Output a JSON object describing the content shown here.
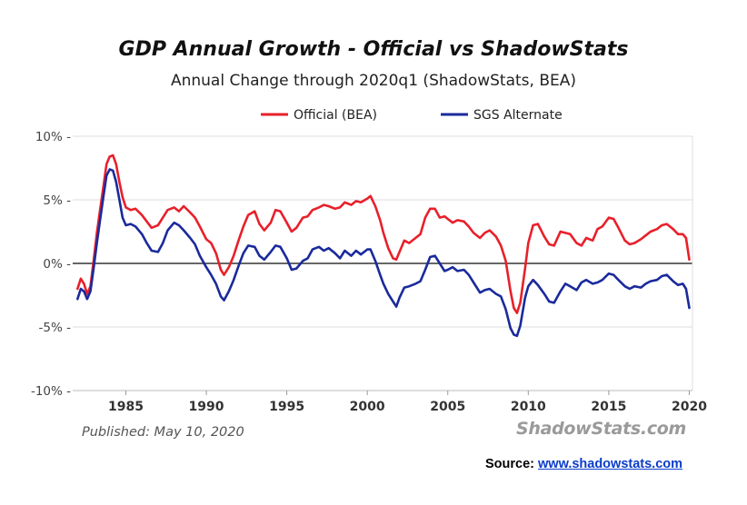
{
  "chart_data": {
    "type": "line",
    "title": "GDP Annual Growth - Official vs ShadowStats",
    "subtitle": "Annual Change through 2020q1  (ShadowStats, BEA)",
    "xlabel": "",
    "ylabel": "",
    "xlim": [
      1981.7,
      2020.2
    ],
    "ylim": [
      -10,
      10
    ],
    "y_ticks": [
      10,
      5,
      0,
      -5,
      -10
    ],
    "y_tick_labels": [
      "10% -",
      "5% -",
      "0% -",
      "-5% -",
      "-10% -"
    ],
    "x_ticks": [
      1985,
      1990,
      1995,
      2000,
      2005,
      2010,
      2015,
      2020
    ],
    "x_tick_labels": [
      "1985",
      "1990",
      "1995",
      "2000",
      "2005",
      "2010",
      "2015",
      "2020"
    ],
    "grid": true,
    "legend": "top-center",
    "series": [
      {
        "name": "Official (BEA)",
        "color": "#e8202a",
        "points": [
          [
            1982.0,
            -2.0
          ],
          [
            1982.2,
            -1.2
          ],
          [
            1982.4,
            -1.6
          ],
          [
            1982.6,
            -2.4
          ],
          [
            1982.8,
            -1.8
          ],
          [
            1983.0,
            0.2
          ],
          [
            1983.2,
            2.4
          ],
          [
            1983.4,
            4.2
          ],
          [
            1983.6,
            6.0
          ],
          [
            1983.8,
            7.8
          ],
          [
            1984.0,
            8.4
          ],
          [
            1984.2,
            8.5
          ],
          [
            1984.4,
            7.8
          ],
          [
            1984.6,
            6.4
          ],
          [
            1984.8,
            5.2
          ],
          [
            1985.0,
            4.4
          ],
          [
            1985.3,
            4.2
          ],
          [
            1985.6,
            4.3
          ],
          [
            1986.0,
            3.8
          ],
          [
            1986.3,
            3.3
          ],
          [
            1986.6,
            2.8
          ],
          [
            1987.0,
            3.0
          ],
          [
            1987.3,
            3.6
          ],
          [
            1987.6,
            4.2
          ],
          [
            1988.0,
            4.4
          ],
          [
            1988.3,
            4.1
          ],
          [
            1988.6,
            4.5
          ],
          [
            1989.0,
            4.0
          ],
          [
            1989.3,
            3.6
          ],
          [
            1989.6,
            2.9
          ],
          [
            1990.0,
            1.9
          ],
          [
            1990.3,
            1.6
          ],
          [
            1990.6,
            0.8
          ],
          [
            1990.9,
            -0.5
          ],
          [
            1991.1,
            -0.9
          ],
          [
            1991.4,
            -0.3
          ],
          [
            1991.7,
            0.6
          ],
          [
            1992.0,
            1.8
          ],
          [
            1992.3,
            2.9
          ],
          [
            1992.6,
            3.8
          ],
          [
            1993.0,
            4.1
          ],
          [
            1993.3,
            3.1
          ],
          [
            1993.6,
            2.6
          ],
          [
            1994.0,
            3.2
          ],
          [
            1994.3,
            4.2
          ],
          [
            1994.6,
            4.1
          ],
          [
            1995.0,
            3.2
          ],
          [
            1995.3,
            2.5
          ],
          [
            1995.6,
            2.8
          ],
          [
            1996.0,
            3.6
          ],
          [
            1996.3,
            3.7
          ],
          [
            1996.6,
            4.2
          ],
          [
            1997.0,
            4.4
          ],
          [
            1997.3,
            4.6
          ],
          [
            1997.6,
            4.5
          ],
          [
            1998.0,
            4.3
          ],
          [
            1998.3,
            4.4
          ],
          [
            1998.6,
            4.8
          ],
          [
            1999.0,
            4.6
          ],
          [
            1999.3,
            4.9
          ],
          [
            1999.6,
            4.8
          ],
          [
            2000.0,
            5.1
          ],
          [
            2000.2,
            5.3
          ],
          [
            2000.5,
            4.5
          ],
          [
            2000.8,
            3.4
          ],
          [
            2001.0,
            2.4
          ],
          [
            2001.3,
            1.2
          ],
          [
            2001.6,
            0.4
          ],
          [
            2001.8,
            0.3
          ],
          [
            2002.0,
            0.9
          ],
          [
            2002.3,
            1.8
          ],
          [
            2002.6,
            1.6
          ],
          [
            2003.0,
            2.0
          ],
          [
            2003.3,
            2.3
          ],
          [
            2003.6,
            3.6
          ],
          [
            2003.9,
            4.3
          ],
          [
            2004.2,
            4.3
          ],
          [
            2004.5,
            3.6
          ],
          [
            2004.8,
            3.7
          ],
          [
            2005.0,
            3.5
          ],
          [
            2005.3,
            3.2
          ],
          [
            2005.6,
            3.4
          ],
          [
            2006.0,
            3.3
          ],
          [
            2006.3,
            2.9
          ],
          [
            2006.6,
            2.4
          ],
          [
            2007.0,
            2.0
          ],
          [
            2007.3,
            2.4
          ],
          [
            2007.6,
            2.6
          ],
          [
            2008.0,
            2.1
          ],
          [
            2008.3,
            1.4
          ],
          [
            2008.6,
            0.2
          ],
          [
            2008.9,
            -2.2
          ],
          [
            2009.1,
            -3.5
          ],
          [
            2009.3,
            -3.9
          ],
          [
            2009.5,
            -3.1
          ],
          [
            2009.8,
            -0.4
          ],
          [
            2010.0,
            1.6
          ],
          [
            2010.3,
            3.0
          ],
          [
            2010.6,
            3.1
          ],
          [
            2011.0,
            2.1
          ],
          [
            2011.3,
            1.5
          ],
          [
            2011.6,
            1.4
          ],
          [
            2012.0,
            2.5
          ],
          [
            2012.3,
            2.4
          ],
          [
            2012.6,
            2.3
          ],
          [
            2013.0,
            1.6
          ],
          [
            2013.3,
            1.4
          ],
          [
            2013.6,
            2.0
          ],
          [
            2014.0,
            1.8
          ],
          [
            2014.3,
            2.7
          ],
          [
            2014.6,
            2.9
          ],
          [
            2015.0,
            3.6
          ],
          [
            2015.3,
            3.5
          ],
          [
            2015.6,
            2.8
          ],
          [
            2016.0,
            1.8
          ],
          [
            2016.3,
            1.5
          ],
          [
            2016.6,
            1.6
          ],
          [
            2017.0,
            1.9
          ],
          [
            2017.3,
            2.2
          ],
          [
            2017.6,
            2.5
          ],
          [
            2018.0,
            2.7
          ],
          [
            2018.3,
            3.0
          ],
          [
            2018.6,
            3.1
          ],
          [
            2019.0,
            2.7
          ],
          [
            2019.3,
            2.3
          ],
          [
            2019.6,
            2.3
          ],
          [
            2019.8,
            2.0
          ],
          [
            2020.0,
            0.3
          ]
        ]
      },
      {
        "name": "SGS Alternate",
        "color": "#1a2a9c",
        "points": [
          [
            1982.0,
            -2.8
          ],
          [
            1982.2,
            -2.0
          ],
          [
            1982.4,
            -2.2
          ],
          [
            1982.6,
            -2.8
          ],
          [
            1982.8,
            -2.2
          ],
          [
            1983.0,
            -0.4
          ],
          [
            1983.2,
            1.6
          ],
          [
            1983.4,
            3.4
          ],
          [
            1983.6,
            5.2
          ],
          [
            1983.8,
            6.9
          ],
          [
            1984.0,
            7.4
          ],
          [
            1984.2,
            7.3
          ],
          [
            1984.4,
            6.4
          ],
          [
            1984.6,
            5.0
          ],
          [
            1984.8,
            3.6
          ],
          [
            1985.0,
            3.0
          ],
          [
            1985.3,
            3.1
          ],
          [
            1985.6,
            2.9
          ],
          [
            1986.0,
            2.3
          ],
          [
            1986.3,
            1.6
          ],
          [
            1986.6,
            1.0
          ],
          [
            1987.0,
            0.9
          ],
          [
            1987.3,
            1.6
          ],
          [
            1987.6,
            2.6
          ],
          [
            1988.0,
            3.2
          ],
          [
            1988.3,
            3.0
          ],
          [
            1988.6,
            2.6
          ],
          [
            1989.0,
            2.0
          ],
          [
            1989.3,
            1.5
          ],
          [
            1989.6,
            0.6
          ],
          [
            1990.0,
            -0.3
          ],
          [
            1990.3,
            -0.9
          ],
          [
            1990.6,
            -1.6
          ],
          [
            1990.9,
            -2.6
          ],
          [
            1991.1,
            -2.9
          ],
          [
            1991.4,
            -2.2
          ],
          [
            1991.7,
            -1.3
          ],
          [
            1992.0,
            -0.2
          ],
          [
            1992.3,
            0.8
          ],
          [
            1992.6,
            1.4
          ],
          [
            1993.0,
            1.3
          ],
          [
            1993.3,
            0.6
          ],
          [
            1993.6,
            0.3
          ],
          [
            1994.0,
            0.9
          ],
          [
            1994.3,
            1.4
          ],
          [
            1994.6,
            1.3
          ],
          [
            1995.0,
            0.4
          ],
          [
            1995.3,
            -0.5
          ],
          [
            1995.6,
            -0.4
          ],
          [
            1996.0,
            0.2
          ],
          [
            1996.3,
            0.4
          ],
          [
            1996.6,
            1.1
          ],
          [
            1997.0,
            1.3
          ],
          [
            1997.3,
            1.0
          ],
          [
            1997.6,
            1.2
          ],
          [
            1998.0,
            0.8
          ],
          [
            1998.3,
            0.4
          ],
          [
            1998.6,
            1.0
          ],
          [
            1999.0,
            0.6
          ],
          [
            1999.3,
            1.0
          ],
          [
            1999.6,
            0.7
          ],
          [
            2000.0,
            1.1
          ],
          [
            2000.2,
            1.1
          ],
          [
            2000.5,
            0.2
          ],
          [
            2000.8,
            -0.9
          ],
          [
            2001.0,
            -1.6
          ],
          [
            2001.3,
            -2.4
          ],
          [
            2001.6,
            -3.0
          ],
          [
            2001.8,
            -3.4
          ],
          [
            2002.0,
            -2.7
          ],
          [
            2002.3,
            -1.9
          ],
          [
            2002.6,
            -1.8
          ],
          [
            2003.0,
            -1.6
          ],
          [
            2003.3,
            -1.4
          ],
          [
            2003.6,
            -0.5
          ],
          [
            2003.9,
            0.5
          ],
          [
            2004.2,
            0.6
          ],
          [
            2004.5,
            0.0
          ],
          [
            2004.8,
            -0.6
          ],
          [
            2005.0,
            -0.5
          ],
          [
            2005.3,
            -0.3
          ],
          [
            2005.6,
            -0.6
          ],
          [
            2006.0,
            -0.5
          ],
          [
            2006.3,
            -0.9
          ],
          [
            2006.6,
            -1.5
          ],
          [
            2007.0,
            -2.3
          ],
          [
            2007.3,
            -2.1
          ],
          [
            2007.6,
            -2.0
          ],
          [
            2008.0,
            -2.4
          ],
          [
            2008.3,
            -2.6
          ],
          [
            2008.6,
            -3.6
          ],
          [
            2008.9,
            -5.1
          ],
          [
            2009.1,
            -5.6
          ],
          [
            2009.3,
            -5.7
          ],
          [
            2009.5,
            -4.9
          ],
          [
            2009.8,
            -2.7
          ],
          [
            2010.0,
            -1.8
          ],
          [
            2010.3,
            -1.3
          ],
          [
            2010.6,
            -1.7
          ],
          [
            2011.0,
            -2.4
          ],
          [
            2011.3,
            -3.0
          ],
          [
            2011.6,
            -3.1
          ],
          [
            2012.0,
            -2.2
          ],
          [
            2012.3,
            -1.6
          ],
          [
            2012.6,
            -1.8
          ],
          [
            2013.0,
            -2.1
          ],
          [
            2013.3,
            -1.5
          ],
          [
            2013.6,
            -1.3
          ],
          [
            2014.0,
            -1.6
          ],
          [
            2014.3,
            -1.5
          ],
          [
            2014.6,
            -1.3
          ],
          [
            2015.0,
            -0.8
          ],
          [
            2015.3,
            -0.9
          ],
          [
            2015.6,
            -1.3
          ],
          [
            2016.0,
            -1.8
          ],
          [
            2016.3,
            -2.0
          ],
          [
            2016.6,
            -1.8
          ],
          [
            2017.0,
            -1.9
          ],
          [
            2017.3,
            -1.6
          ],
          [
            2017.6,
            -1.4
          ],
          [
            2018.0,
            -1.3
          ],
          [
            2018.3,
            -1.0
          ],
          [
            2018.6,
            -0.9
          ],
          [
            2019.0,
            -1.4
          ],
          [
            2019.3,
            -1.7
          ],
          [
            2019.6,
            -1.6
          ],
          [
            2019.8,
            -2.0
          ],
          [
            2020.0,
            -3.5
          ]
        ]
      }
    ]
  },
  "footer": {
    "published": "Published: May 10, 2020",
    "watermark": "ShadowStats.com",
    "source_label": "Source: ",
    "source_link": "www.shadowstats.com"
  },
  "colors": {
    "official": "#e8202a",
    "sgs": "#1a2a9c",
    "link": "#0a3cc9",
    "zero_line": "#666666",
    "gridline": "#dddddd"
  }
}
